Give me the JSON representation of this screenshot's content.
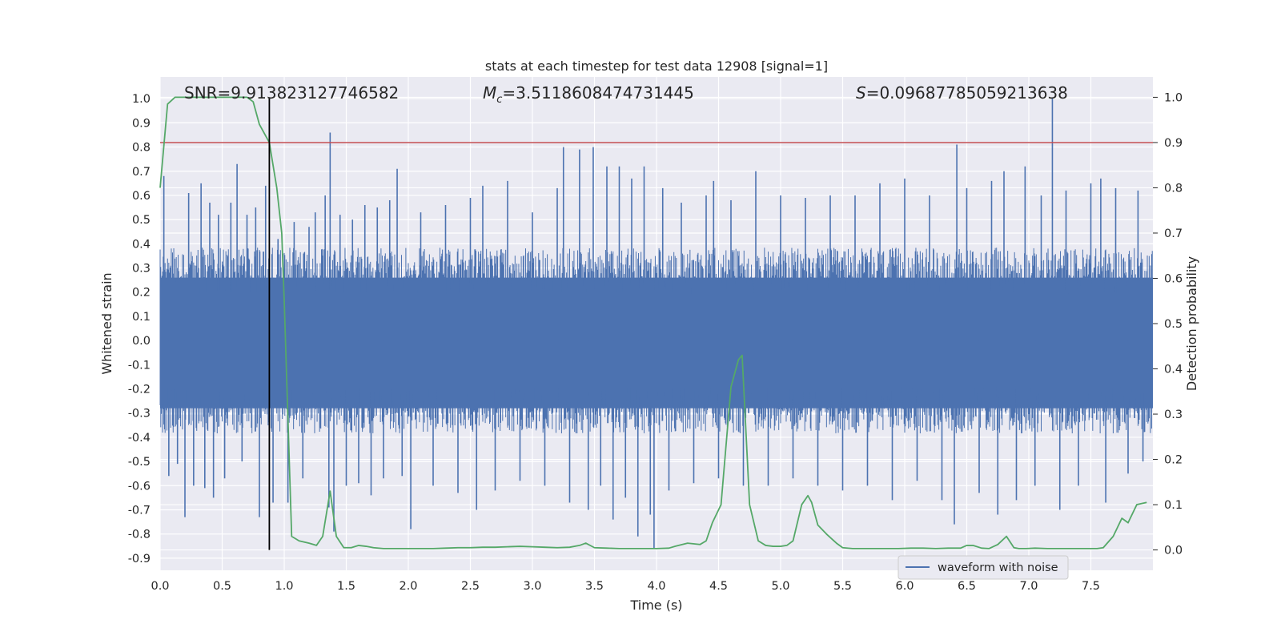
{
  "chart_data": {
    "type": "line",
    "title": "stats at each timestep for test data 12908 [signal=1]",
    "xlabel": "Time (s)",
    "ylabel_left": "Whitened strain",
    "ylabel_right": "Detection probability",
    "xlim": [
      0.0,
      8.0
    ],
    "ylim_left": [
      -0.95,
      1.09
    ],
    "ylim_right": [
      -0.045,
      1.045
    ],
    "x_ticks": [
      "0.0",
      "0.5",
      "1.0",
      "1.5",
      "2.0",
      "2.5",
      "3.0",
      "3.5",
      "4.0",
      "4.5",
      "5.0",
      "5.5",
      "6.0",
      "6.5",
      "7.0",
      "7.5"
    ],
    "y_ticks_left": [
      "1.0",
      "0.9",
      "0.8",
      "0.7",
      "0.6",
      "0.5",
      "0.4",
      "0.3",
      "0.2",
      "0.1",
      "0.0",
      "-0.1",
      "-0.2",
      "-0.3",
      "-0.4",
      "-0.5",
      "-0.6",
      "-0.7",
      "-0.8",
      "-0.9"
    ],
    "y_ticks_right": [
      "1.0",
      "0.9",
      "0.8",
      "0.7",
      "0.6",
      "0.5",
      "0.4",
      "0.3",
      "0.2",
      "0.1",
      "0.0"
    ],
    "grid": true,
    "legend": {
      "placement": "lower-right",
      "entries": [
        {
          "name": "waveform with noise",
          "color": "#4c72b0"
        }
      ]
    },
    "annotations": {
      "snr": "SNR=9.913823127746582",
      "mc_symbol": "M",
      "mc_sub": "c",
      "mc_value": "=3.5118608474731445",
      "s_symbol": "S",
      "s_value": "=0.09687785059213638"
    },
    "threshold_right": 0.9,
    "threshold_color": "#c44e52",
    "vertical_marker_x": 0.88,
    "vertical_marker_color": "#000000",
    "waveform_color": "#4c72b0",
    "probability_color": "#55a868",
    "series": [
      {
        "name": "waveform with noise",
        "axis": "left",
        "core_envelope": [
          -0.32,
          0.32
        ],
        "spikes": [
          [
            0.03,
            0.68
          ],
          [
            0.07,
            -0.56
          ],
          [
            0.14,
            -0.51
          ],
          [
            0.2,
            -0.73
          ],
          [
            0.23,
            0.61
          ],
          [
            0.27,
            -0.6
          ],
          [
            0.33,
            0.65
          ],
          [
            0.36,
            -0.61
          ],
          [
            0.4,
            0.57
          ],
          [
            0.43,
            -0.65
          ],
          [
            0.47,
            0.52
          ],
          [
            0.52,
            -0.57
          ],
          [
            0.57,
            0.57
          ],
          [
            0.62,
            0.73
          ],
          [
            0.66,
            -0.5
          ],
          [
            0.7,
            0.52
          ],
          [
            0.77,
            0.55
          ],
          [
            0.8,
            -0.73
          ],
          [
            0.85,
            0.64
          ],
          [
            0.91,
            -0.67
          ],
          [
            0.95,
            0.42
          ],
          [
            1.03,
            -0.67
          ],
          [
            1.08,
            0.49
          ],
          [
            1.15,
            -0.57
          ],
          [
            1.2,
            0.47
          ],
          [
            1.25,
            0.53
          ],
          [
            1.33,
            0.6
          ],
          [
            1.36,
            -0.69
          ],
          [
            1.37,
            0.86
          ],
          [
            1.4,
            -0.79
          ],
          [
            1.45,
            0.52
          ],
          [
            1.5,
            -0.6
          ],
          [
            1.55,
            0.5
          ],
          [
            1.6,
            -0.59
          ],
          [
            1.65,
            0.56
          ],
          [
            1.7,
            -0.64
          ],
          [
            1.75,
            0.55
          ],
          [
            1.8,
            -0.57
          ],
          [
            1.85,
            0.58
          ],
          [
            1.91,
            0.71
          ],
          [
            1.95,
            -0.56
          ],
          [
            2.02,
            -0.78
          ],
          [
            2.1,
            0.53
          ],
          [
            2.2,
            -0.6
          ],
          [
            2.3,
            0.56
          ],
          [
            2.4,
            -0.63
          ],
          [
            2.5,
            0.59
          ],
          [
            2.55,
            -0.7
          ],
          [
            2.6,
            0.64
          ],
          [
            2.7,
            -0.62
          ],
          [
            2.8,
            0.66
          ],
          [
            2.9,
            -0.58
          ],
          [
            3.0,
            0.53
          ],
          [
            3.1,
            -0.6
          ],
          [
            3.2,
            0.63
          ],
          [
            3.25,
            0.8
          ],
          [
            3.3,
            -0.67
          ],
          [
            3.38,
            0.79
          ],
          [
            3.45,
            -0.7
          ],
          [
            3.49,
            0.8
          ],
          [
            3.55,
            -0.6
          ],
          [
            3.6,
            0.72
          ],
          [
            3.65,
            -0.74
          ],
          [
            3.7,
            0.72
          ],
          [
            3.75,
            -0.65
          ],
          [
            3.8,
            0.67
          ],
          [
            3.85,
            -0.81
          ],
          [
            3.9,
            0.72
          ],
          [
            3.95,
            -0.72
          ],
          [
            3.98,
            -0.86
          ],
          [
            4.05,
            0.63
          ],
          [
            4.1,
            -0.62
          ],
          [
            4.2,
            0.57
          ],
          [
            4.3,
            -0.59
          ],
          [
            4.4,
            0.6
          ],
          [
            4.46,
            0.66
          ],
          [
            4.5,
            -0.57
          ],
          [
            4.6,
            0.58
          ],
          [
            4.7,
            -0.6
          ],
          [
            4.8,
            0.7
          ],
          [
            4.9,
            -0.6
          ],
          [
            5.0,
            0.6
          ],
          [
            5.1,
            -0.57
          ],
          [
            5.2,
            0.59
          ],
          [
            5.3,
            -0.6
          ],
          [
            5.4,
            0.6
          ],
          [
            5.5,
            -0.62
          ],
          [
            5.6,
            0.6
          ],
          [
            5.7,
            -0.6
          ],
          [
            5.8,
            0.65
          ],
          [
            5.9,
            -0.66
          ],
          [
            6.0,
            0.67
          ],
          [
            6.1,
            -0.58
          ],
          [
            6.2,
            0.6
          ],
          [
            6.3,
            -0.66
          ],
          [
            6.4,
            -0.76
          ],
          [
            6.42,
            0.81
          ],
          [
            6.5,
            0.63
          ],
          [
            6.6,
            -0.63
          ],
          [
            6.7,
            0.66
          ],
          [
            6.75,
            -0.72
          ],
          [
            6.8,
            0.7
          ],
          [
            6.9,
            -0.66
          ],
          [
            6.97,
            0.72
          ],
          [
            7.05,
            -0.6
          ],
          [
            7.1,
            0.6
          ],
          [
            7.19,
            1.0
          ],
          [
            7.25,
            -0.7
          ],
          [
            7.3,
            0.62
          ],
          [
            7.4,
            -0.6
          ],
          [
            7.5,
            0.65
          ],
          [
            7.58,
            0.67
          ],
          [
            7.62,
            -0.67
          ],
          [
            7.7,
            0.63
          ],
          [
            7.8,
            -0.55
          ],
          [
            7.88,
            0.62
          ],
          [
            7.92,
            -0.5
          ]
        ]
      },
      {
        "name": "detection probability",
        "axis": "right",
        "x": [
          0.0,
          0.06,
          0.12,
          0.2,
          0.3,
          0.4,
          0.5,
          0.6,
          0.7,
          0.75,
          0.8,
          0.88,
          0.94,
          0.98,
          1.0,
          1.06,
          1.12,
          1.2,
          1.26,
          1.31,
          1.37,
          1.42,
          1.48,
          1.54,
          1.6,
          1.66,
          1.72,
          1.8,
          1.9,
          2.0,
          2.1,
          2.2,
          2.3,
          2.4,
          2.5,
          2.6,
          2.7,
          2.8,
          2.9,
          3.0,
          3.1,
          3.2,
          3.3,
          3.38,
          3.43,
          3.5,
          3.6,
          3.7,
          3.8,
          3.9,
          4.0,
          4.1,
          4.15,
          4.25,
          4.35,
          4.4,
          4.45,
          4.52,
          4.6,
          4.66,
          4.69,
          4.75,
          4.82,
          4.88,
          4.94,
          5.0,
          5.05,
          5.1,
          5.17,
          5.22,
          5.25,
          5.3,
          5.37,
          5.45,
          5.5,
          5.58,
          5.66,
          5.75,
          5.85,
          5.95,
          6.05,
          6.15,
          6.25,
          6.35,
          6.45,
          6.5,
          6.55,
          6.62,
          6.68,
          6.75,
          6.82,
          6.88,
          6.92,
          6.98,
          7.05,
          7.15,
          7.25,
          7.35,
          7.45,
          7.55,
          7.6,
          7.68,
          7.75,
          7.8,
          7.87,
          7.95
        ],
        "y": [
          0.8,
          0.985,
          1.0,
          1.0,
          1.0,
          1.0,
          1.0,
          1.0,
          1.0,
          0.99,
          0.94,
          0.9,
          0.8,
          0.7,
          0.55,
          0.03,
          0.02,
          0.015,
          0.01,
          0.03,
          0.13,
          0.03,
          0.005,
          0.005,
          0.01,
          0.008,
          0.005,
          0.003,
          0.003,
          0.003,
          0.003,
          0.003,
          0.004,
          0.005,
          0.005,
          0.006,
          0.006,
          0.007,
          0.008,
          0.007,
          0.006,
          0.005,
          0.006,
          0.01,
          0.015,
          0.005,
          0.004,
          0.003,
          0.003,
          0.003,
          0.003,
          0.004,
          0.008,
          0.015,
          0.012,
          0.02,
          0.06,
          0.1,
          0.36,
          0.42,
          0.43,
          0.1,
          0.02,
          0.01,
          0.008,
          0.008,
          0.01,
          0.02,
          0.1,
          0.12,
          0.105,
          0.055,
          0.035,
          0.015,
          0.005,
          0.003,
          0.003,
          0.003,
          0.003,
          0.003,
          0.004,
          0.004,
          0.003,
          0.004,
          0.004,
          0.01,
          0.01,
          0.004,
          0.003,
          0.012,
          0.03,
          0.005,
          0.003,
          0.003,
          0.004,
          0.003,
          0.003,
          0.003,
          0.003,
          0.003,
          0.005,
          0.03,
          0.07,
          0.06,
          0.1,
          0.105
        ]
      }
    ]
  }
}
